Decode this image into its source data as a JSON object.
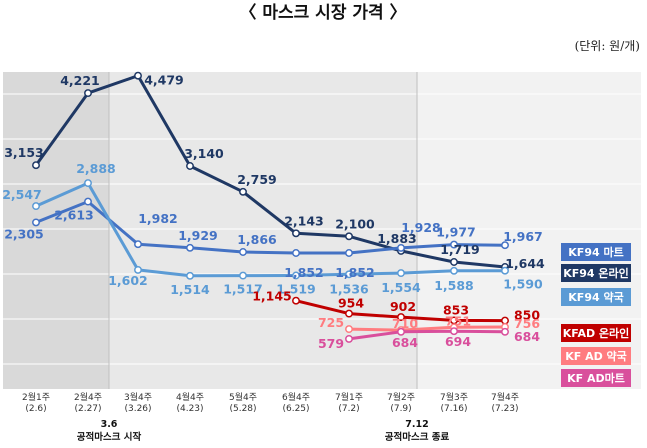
{
  "title": "〈 마스크 시장 가격 〉",
  "unit": "(단위: 원/개)",
  "chart_data": {
    "type": "line",
    "categories": [
      "2월1주\n(2.6)",
      "2월4주\n(2.27)",
      "3월4주\n(3.26)",
      "4월4주\n(4.23)",
      "5월4주\n(5.28)",
      "6월4주\n(6.25)",
      "7월1주\n(7.2)",
      "7월2주\n(7.9)",
      "7월3주\n(7.16)",
      "7월4주\n(7.23)"
    ],
    "series": [
      {
        "name": "KF94 온라인",
        "color": "#1f3864",
        "values": [
          3153,
          4221,
          4479,
          3140,
          2759,
          2143,
          2100,
          1883,
          1719,
          1644
        ]
      },
      {
        "name": "KF94 마트",
        "color": "#4472c4",
        "values": [
          2305,
          2613,
          1982,
          1929,
          1866,
          1852,
          1852,
          1928,
          1977,
          1967
        ]
      },
      {
        "name": "KF94 약국",
        "color": "#5b9bd5",
        "values": [
          2547,
          2888,
          1602,
          1514,
          1517,
          1519,
          1536,
          1554,
          1588,
          1590
        ]
      },
      {
        "name": "KFAD 온라인",
        "color": "#c00000",
        "values": [
          null,
          null,
          null,
          null,
          null,
          1145,
          954,
          902,
          853,
          850
        ]
      },
      {
        "name": "KF AD 약국",
        "color": "#ff7c80",
        "values": [
          null,
          null,
          null,
          null,
          null,
          null,
          725,
          710,
          751,
          756
        ]
      },
      {
        "name": "KF AD마트",
        "color": "#d94f9c",
        "values": [
          null,
          null,
          null,
          null,
          null,
          null,
          579,
          684,
          694,
          684
        ]
      }
    ],
    "annotations": [
      {
        "date": "3.6",
        "text": "공적마스크 시작"
      },
      {
        "date": "7.12",
        "text": "공적마스크 종료"
      }
    ],
    "grid": true,
    "legend": "right"
  }
}
